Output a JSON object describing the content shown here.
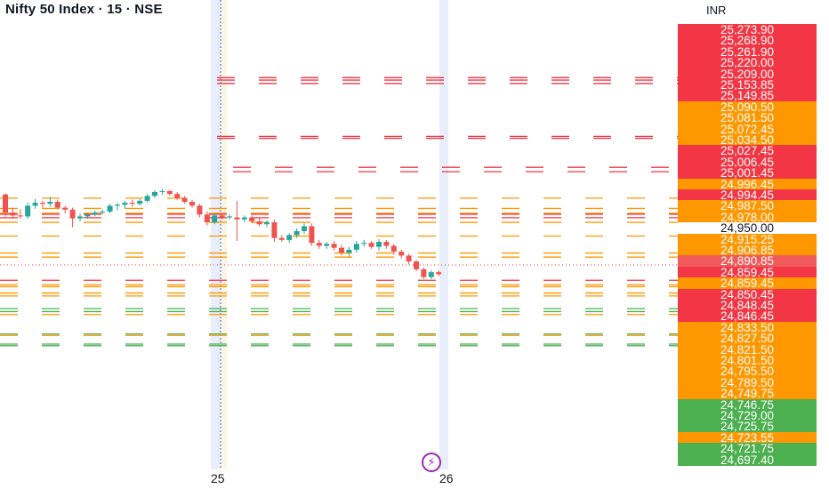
{
  "header": {
    "title": "Nifty 50 Index · 15 · NSE"
  },
  "price_axis": {
    "currency": "INR",
    "labels": [
      {
        "value": "25,273.90",
        "color": "#f23645"
      },
      {
        "value": "25,268.90",
        "color": "#f23645"
      },
      {
        "value": "25,261.90",
        "color": "#f23645"
      },
      {
        "value": "25,220.00",
        "color": "#f23645"
      },
      {
        "value": "25,209.00",
        "color": "#f23645"
      },
      {
        "value": "25,153.85",
        "color": "#f23645"
      },
      {
        "value": "25,149.85",
        "color": "#f23645"
      },
      {
        "value": "25,090.50",
        "color": "#ff9800"
      },
      {
        "value": "25,081.50",
        "color": "#ff9800"
      },
      {
        "value": "25,072.45",
        "color": "#ff9800"
      },
      {
        "value": "25,034.50",
        "color": "#ff9800"
      },
      {
        "value": "25,027.45",
        "color": "#f23645"
      },
      {
        "value": "25,006.45",
        "color": "#f23645"
      },
      {
        "value": "25,001.45",
        "color": "#f23645"
      },
      {
        "value": "24,996.45",
        "color": "#ff9800"
      },
      {
        "value": "24,994.45",
        "color": "#f23645"
      },
      {
        "value": "24,987.50",
        "color": "#ff9800"
      },
      {
        "value": "24,978.00",
        "color": "#ff9800"
      },
      {
        "value": "24,950.00",
        "color": "#ffffff"
      },
      {
        "value": "24,915.25",
        "color": "#ff9800"
      },
      {
        "value": "24,906.85",
        "color": "#ff9800"
      },
      {
        "value": "24,890.85",
        "color": "#f05a5a"
      },
      {
        "value": "24,859.45",
        "color": "#f23645"
      },
      {
        "value": "24,859.45",
        "color": "#ff9800"
      },
      {
        "value": "24,850.45",
        "color": "#f23645"
      },
      {
        "value": "24,848.45",
        "color": "#f23645"
      },
      {
        "value": "24,846.45",
        "color": "#f23645"
      },
      {
        "value": "24,833.50",
        "color": "#ff9800"
      },
      {
        "value": "24,827.50",
        "color": "#ff9800"
      },
      {
        "value": "24,821.50",
        "color": "#ff9800"
      },
      {
        "value": "24,801.50",
        "color": "#ff9800"
      },
      {
        "value": "24,795.50",
        "color": "#ff9800"
      },
      {
        "value": "24,789.50",
        "color": "#ff9800"
      },
      {
        "value": "24,749.75",
        "color": "#ff9800"
      },
      {
        "value": "24,746.75",
        "color": "#4caf50"
      },
      {
        "value": "24,729.00",
        "color": "#4caf50"
      },
      {
        "value": "24,725.75",
        "color": "#4caf50"
      },
      {
        "value": "24,723.55",
        "color": "#ff9800"
      },
      {
        "value": "24,721.75",
        "color": "#4caf50"
      },
      {
        "value": "24,697.40",
        "color": "#4caf50"
      }
    ]
  },
  "time_axis": {
    "labels": [
      "25",
      "26"
    ]
  },
  "chart_data": {
    "type": "candlestick",
    "symbol": "Nifty 50 Index",
    "interval": "15",
    "exchange": "NSE",
    "x_ticks": [
      "25",
      "26"
    ],
    "candles": [
      {
        "o": 25035,
        "h": 25037,
        "l": 24990,
        "c": 24998
      },
      {
        "o": 24998,
        "h": 25008,
        "l": 24985,
        "c": 24992
      },
      {
        "o": 24992,
        "h": 25005,
        "l": 24985,
        "c": 24990
      },
      {
        "o": 24990,
        "h": 25018,
        "l": 24985,
        "c": 25012
      },
      {
        "o": 25012,
        "h": 25026,
        "l": 25006,
        "c": 25018
      },
      {
        "o": 25018,
        "h": 25022,
        "l": 25008,
        "c": 25016
      },
      {
        "o": 25016,
        "h": 25030,
        "l": 25010,
        "c": 25020
      },
      {
        "o": 25020,
        "h": 25024,
        "l": 25005,
        "c": 25008
      },
      {
        "o": 25008,
        "h": 25012,
        "l": 24996,
        "c": 25004
      },
      {
        "o": 25004,
        "h": 25008,
        "l": 24968,
        "c": 24986
      },
      {
        "o": 24986,
        "h": 24996,
        "l": 24980,
        "c": 24990
      },
      {
        "o": 24990,
        "h": 24998,
        "l": 24985,
        "c": 24994
      },
      {
        "o": 24994,
        "h": 25002,
        "l": 24990,
        "c": 24998
      },
      {
        "o": 24998,
        "h": 25004,
        "l": 24994,
        "c": 25000
      },
      {
        "o": 25000,
        "h": 25016,
        "l": 24996,
        "c": 25012
      },
      {
        "o": 25012,
        "h": 25018,
        "l": 25002,
        "c": 25014
      },
      {
        "o": 25014,
        "h": 25022,
        "l": 25006,
        "c": 25018
      },
      {
        "o": 25018,
        "h": 25024,
        "l": 25010,
        "c": 25016
      },
      {
        "o": 25016,
        "h": 25026,
        "l": 25012,
        "c": 25022
      },
      {
        "o": 25022,
        "h": 25036,
        "l": 25018,
        "c": 25032
      },
      {
        "o": 25032,
        "h": 25044,
        "l": 25028,
        "c": 25040
      },
      {
        "o": 25040,
        "h": 25046,
        "l": 25034,
        "c": 25042
      },
      {
        "o": 25042,
        "h": 25044,
        "l": 25032,
        "c": 25036
      },
      {
        "o": 25036,
        "h": 25040,
        "l": 25024,
        "c": 25028
      },
      {
        "o": 25028,
        "h": 25032,
        "l": 25016,
        "c": 25020
      },
      {
        "o": 25020,
        "h": 25024,
        "l": 25008,
        "c": 25012
      },
      {
        "o": 25012,
        "h": 25016,
        "l": 24988,
        "c": 24994
      },
      {
        "o": 24994,
        "h": 25000,
        "l": 24972,
        "c": 24978
      },
      {
        "o": 24978,
        "h": 24996,
        "l": 24974,
        "c": 24992
      },
      {
        "o": 24992,
        "h": 24996,
        "l": 24984,
        "c": 24988
      },
      {
        "o": 24988,
        "h": 24994,
        "l": 24984,
        "c": 24990
      },
      {
        "o": 24988,
        "h": 25022,
        "l": 24940,
        "c": 24984
      },
      {
        "o": 24984,
        "h": 24992,
        "l": 24978,
        "c": 24988
      },
      {
        "o": 24988,
        "h": 24992,
        "l": 24976,
        "c": 24980
      },
      {
        "o": 24980,
        "h": 24986,
        "l": 24970,
        "c": 24974
      },
      {
        "o": 24974,
        "h": 24982,
        "l": 24968,
        "c": 24978
      },
      {
        "o": 24978,
        "h": 24984,
        "l": 24938,
        "c": 24946
      },
      {
        "o": 24946,
        "h": 24952,
        "l": 24938,
        "c": 24942
      },
      {
        "o": 24942,
        "h": 24956,
        "l": 24936,
        "c": 24952
      },
      {
        "o": 24952,
        "h": 24966,
        "l": 24946,
        "c": 24960
      },
      {
        "o": 24960,
        "h": 24976,
        "l": 24954,
        "c": 24970
      },
      {
        "o": 24970,
        "h": 24976,
        "l": 24930,
        "c": 24936
      },
      {
        "o": 24936,
        "h": 24942,
        "l": 24924,
        "c": 24930
      },
      {
        "o": 24930,
        "h": 24938,
        "l": 24924,
        "c": 24934
      },
      {
        "o": 24934,
        "h": 24940,
        "l": 24920,
        "c": 24926
      },
      {
        "o": 24926,
        "h": 24932,
        "l": 24910,
        "c": 24916
      },
      {
        "o": 24916,
        "h": 24928,
        "l": 24908,
        "c": 24922
      },
      {
        "o": 24922,
        "h": 24940,
        "l": 24916,
        "c": 24934
      },
      {
        "o": 24934,
        "h": 24942,
        "l": 24928,
        "c": 24936
      },
      {
        "o": 24936,
        "h": 24940,
        "l": 24924,
        "c": 24928
      },
      {
        "o": 24928,
        "h": 24944,
        "l": 24920,
        "c": 24938
      },
      {
        "o": 24938,
        "h": 24942,
        "l": 24924,
        "c": 24930
      },
      {
        "o": 24930,
        "h": 24934,
        "l": 24912,
        "c": 24918
      },
      {
        "o": 24918,
        "h": 24922,
        "l": 24904,
        "c": 24910
      },
      {
        "o": 24910,
        "h": 24914,
        "l": 24892,
        "c": 24898
      },
      {
        "o": 24898,
        "h": 24902,
        "l": 24878,
        "c": 24882
      },
      {
        "o": 24882,
        "h": 24886,
        "l": 24862,
        "c": 24866
      },
      {
        "o": 24866,
        "h": 24880,
        "l": 24862,
        "c": 24876
      },
      {
        "o": 24876,
        "h": 24880,
        "l": 24868,
        "c": 24872
      }
    ],
    "levels": [
      {
        "price": 25273.9,
        "color": "#f23645"
      },
      {
        "price": 25268.9,
        "color": "#f23645"
      },
      {
        "price": 25261.9,
        "color": "#f23645"
      },
      {
        "price": 25149.85,
        "color": "#f23645"
      },
      {
        "price": 25153.85,
        "color": "#f23645"
      },
      {
        "price": 25090.5,
        "color": "#f23645"
      },
      {
        "price": 25081.5,
        "color": "#f23645"
      },
      {
        "price": 25027.45,
        "color": "#ff9800"
      },
      {
        "price": 25006.45,
        "color": "#ff9800"
      },
      {
        "price": 24996.45,
        "color": "#ff9800"
      },
      {
        "price": 24994.45,
        "color": "#f23645"
      },
      {
        "price": 24987.5,
        "color": "#f23645"
      },
      {
        "price": 24978.0,
        "color": "#ff9800"
      },
      {
        "price": 24950.0,
        "color": "#ff9800"
      },
      {
        "price": 24915.25,
        "color": "#ff9800"
      },
      {
        "price": 24906.85,
        "color": "#ff9800"
      },
      {
        "price": 24859.45,
        "color": "#f23645"
      },
      {
        "price": 24850.45,
        "color": "#ff9800"
      },
      {
        "price": 24846.45,
        "color": "#ff9800"
      },
      {
        "price": 24833.5,
        "color": "#ff9800"
      },
      {
        "price": 24827.5,
        "color": "#ff9800"
      },
      {
        "price": 24801.5,
        "color": "#4caf50"
      },
      {
        "price": 24795.5,
        "color": "#4caf50"
      },
      {
        "price": 24789.5,
        "color": "#ff9800"
      },
      {
        "price": 24749.75,
        "color": "#4caf50"
      },
      {
        "price": 24746.75,
        "color": "#ff9800"
      },
      {
        "price": 24729.0,
        "color": "#4caf50"
      },
      {
        "price": 24725.75,
        "color": "#4caf50"
      }
    ],
    "current_price": 24890.85
  }
}
